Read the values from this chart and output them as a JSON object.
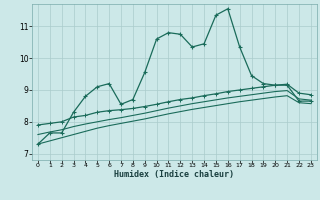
{
  "xlabel": "Humidex (Indice chaleur)",
  "background_color": "#cce8e8",
  "grid_color": "#aacccc",
  "line_color": "#1a6b5a",
  "xlim": [
    -0.5,
    23.5
  ],
  "ylim": [
    6.8,
    11.7
  ],
  "xticks": [
    0,
    1,
    2,
    3,
    4,
    5,
    6,
    7,
    8,
    9,
    10,
    11,
    12,
    13,
    14,
    15,
    16,
    17,
    18,
    19,
    20,
    21,
    22,
    23
  ],
  "yticks": [
    7,
    8,
    9,
    10,
    11
  ],
  "line1_x": [
    0,
    1,
    2,
    3,
    4,
    5,
    6,
    7,
    8,
    9,
    10,
    11,
    12,
    13,
    14,
    15,
    16,
    17,
    18,
    19,
    20,
    21,
    22,
    23
  ],
  "line1_y": [
    7.3,
    7.65,
    7.65,
    8.3,
    8.8,
    9.1,
    9.2,
    8.55,
    8.7,
    9.55,
    10.6,
    10.8,
    10.75,
    10.35,
    10.45,
    11.35,
    11.55,
    10.35,
    9.45,
    9.2,
    9.15,
    9.15,
    8.65,
    8.65
  ],
  "line2_x": [
    0,
    1,
    2,
    3,
    4,
    5,
    6,
    7,
    8,
    9,
    10,
    11,
    12,
    13,
    14,
    15,
    16,
    17,
    18,
    19,
    20,
    21,
    22,
    23
  ],
  "line2_y": [
    7.9,
    7.95,
    8.0,
    8.15,
    8.2,
    8.3,
    8.35,
    8.38,
    8.42,
    8.48,
    8.55,
    8.63,
    8.7,
    8.75,
    8.82,
    8.88,
    8.95,
    9.0,
    9.05,
    9.1,
    9.15,
    9.18,
    8.9,
    8.85
  ],
  "line3_x": [
    0,
    1,
    2,
    3,
    4,
    5,
    6,
    7,
    8,
    9,
    10,
    11,
    12,
    13,
    14,
    15,
    16,
    17,
    18,
    19,
    20,
    21,
    22,
    23
  ],
  "line3_y": [
    7.6,
    7.68,
    7.75,
    7.85,
    7.93,
    8.0,
    8.07,
    8.13,
    8.2,
    8.27,
    8.35,
    8.43,
    8.5,
    8.57,
    8.63,
    8.69,
    8.75,
    8.8,
    8.85,
    8.9,
    8.95,
    8.98,
    8.72,
    8.68
  ],
  "line4_x": [
    0,
    1,
    2,
    3,
    4,
    5,
    6,
    7,
    8,
    9,
    10,
    11,
    12,
    13,
    14,
    15,
    16,
    17,
    18,
    19,
    20,
    21,
    22,
    23
  ],
  "line4_y": [
    7.3,
    7.4,
    7.5,
    7.6,
    7.7,
    7.8,
    7.88,
    7.95,
    8.02,
    8.09,
    8.17,
    8.25,
    8.32,
    8.39,
    8.45,
    8.51,
    8.57,
    8.63,
    8.68,
    8.73,
    8.78,
    8.82,
    8.6,
    8.57
  ]
}
